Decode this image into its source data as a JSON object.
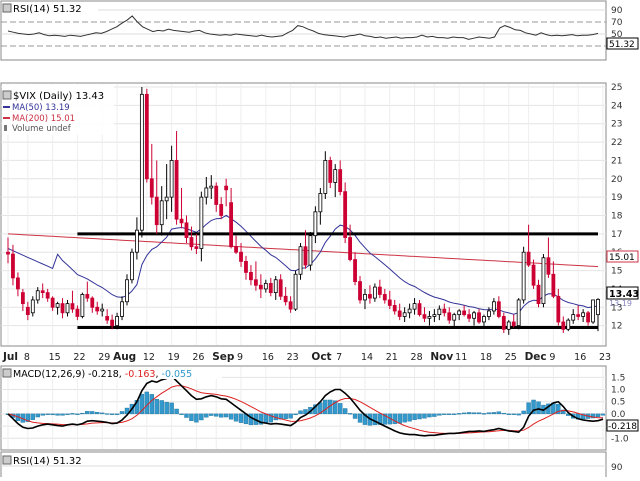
{
  "chart_data": [
    {
      "type": "line",
      "panel": "rsi-top",
      "title": "RSI(14) 51.32",
      "ylim": [
        10,
        100
      ],
      "yticks": [
        "90",
        "70",
        "50",
        "30"
      ],
      "reference_lines": [
        70,
        30
      ],
      "last_label": "51.32",
      "color": "#333333",
      "values": [
        55,
        53,
        51,
        50,
        49,
        50,
        52,
        49,
        47,
        48,
        47,
        46,
        48,
        47,
        46,
        48,
        50,
        52,
        51,
        54,
        58,
        62,
        68,
        73,
        80,
        70,
        62,
        58,
        54,
        56,
        55,
        58,
        56,
        55,
        54,
        53,
        55,
        56,
        52,
        50,
        49,
        48,
        49,
        48,
        50,
        49,
        48,
        47,
        46,
        48,
        46,
        45,
        46,
        47,
        52,
        56,
        64,
        62,
        58,
        55,
        51,
        49,
        48,
        47,
        46,
        45,
        47,
        48,
        50,
        47,
        46,
        44,
        45,
        43,
        44,
        45,
        43,
        44,
        44,
        45,
        48,
        45,
        46,
        44,
        44,
        43,
        45,
        44,
        44,
        41,
        43,
        45,
        44,
        43,
        45,
        60,
        64,
        61,
        57,
        56,
        52,
        50,
        48,
        52,
        49,
        47,
        48,
        47,
        48,
        49,
        47,
        48,
        48,
        49,
        51
      ]
    },
    {
      "type": "candlestick",
      "panel": "main",
      "title": "$VIX (Daily) 13.43",
      "ylim": [
        11,
        25
      ],
      "yticks": [
        "25",
        "24",
        "23",
        "22",
        "21",
        "20",
        "19",
        "18",
        "17",
        "16",
        "15",
        "14",
        "13",
        "12"
      ],
      "xticks": [
        "Jul",
        "8",
        "15",
        "22",
        "29",
        "Aug",
        "12",
        "19",
        "26",
        "Sep",
        "9",
        "16",
        "23",
        "Oct",
        "7",
        "14",
        "21",
        "28",
        "Nov",
        "11",
        "18",
        "25",
        "Dec",
        "9",
        "16",
        "23"
      ],
      "xtick_index": [
        0,
        4,
        9,
        14,
        19,
        22,
        28,
        33,
        38,
        42,
        47,
        52,
        57,
        62,
        67,
        72,
        77,
        82,
        86,
        91,
        96,
        101,
        105,
        110,
        115,
        120
      ],
      "month_labels": [
        "Jul",
        "Aug",
        "Sep",
        "Oct",
        "Nov",
        "Dec"
      ],
      "legend": [
        {
          "label": "$VIX (Daily) 13.43",
          "color": "#000000"
        },
        {
          "label": "MA(50) 13.19",
          "color": "#333399"
        },
        {
          "label": "MA(200) 15.01",
          "color": "#cc3344"
        },
        {
          "label": "Volume undef",
          "color": "#777777"
        }
      ],
      "last_labels": {
        "price": "13.43",
        "ma200": "15.01",
        "ma50": "13.19"
      },
      "support_lines": [
        17.0,
        11.9
      ],
      "colors": {
        "up": "#000000",
        "down": "#cc0033",
        "ma50": "#333399",
        "ma200": "#cc3344"
      },
      "ohlc": [
        [
          16.0,
          16.8,
          15.4,
          15.9
        ],
        [
          15.9,
          16.4,
          14.2,
          14.6
        ],
        [
          14.6,
          14.9,
          13.6,
          14.0
        ],
        [
          13.8,
          14.0,
          12.8,
          13.2
        ],
        [
          13.0,
          13.3,
          12.3,
          12.6
        ],
        [
          12.7,
          13.6,
          12.5,
          13.4
        ],
        [
          13.4,
          14.1,
          13.2,
          13.9
        ],
        [
          13.9,
          14.3,
          13.5,
          13.8
        ],
        [
          13.8,
          14.0,
          13.3,
          13.5
        ],
        [
          13.5,
          13.6,
          12.8,
          13.0
        ],
        [
          13.0,
          13.3,
          12.6,
          13.2
        ],
        [
          13.2,
          13.5,
          12.4,
          12.7
        ],
        [
          12.7,
          13.4,
          12.5,
          13.2
        ],
        [
          13.2,
          13.9,
          12.7,
          12.9
        ],
        [
          12.9,
          13.1,
          12.3,
          12.5
        ],
        [
          12.5,
          13.8,
          12.4,
          13.7
        ],
        [
          13.7,
          14.4,
          13.3,
          13.5
        ],
        [
          13.5,
          13.6,
          12.7,
          13.0
        ],
        [
          13.0,
          13.3,
          12.6,
          12.8
        ],
        [
          12.8,
          13.2,
          12.5,
          12.9
        ],
        [
          12.5,
          12.9,
          12.1,
          12.3
        ],
        [
          12.3,
          12.6,
          11.8,
          12.0
        ],
        [
          12.0,
          12.7,
          11.8,
          12.5
        ],
        [
          12.5,
          13.6,
          12.3,
          13.3
        ],
        [
          13.3,
          14.8,
          13.1,
          14.5
        ],
        [
          14.5,
          16.2,
          14.3,
          16.0
        ],
        [
          16.0,
          17.9,
          15.6,
          17.2
        ],
        [
          17.2,
          25.0,
          16.8,
          24.6
        ],
        [
          24.6,
          24.9,
          19.8,
          20.0
        ],
        [
          20.0,
          21.9,
          18.6,
          19.0
        ],
        [
          19.0,
          21.0,
          17.0,
          17.5
        ],
        [
          17.5,
          19.6,
          16.9,
          18.8
        ],
        [
          18.8,
          20.8,
          17.8,
          19.0
        ],
        [
          19.0,
          21.8,
          18.2,
          21.0
        ],
        [
          21.0,
          22.6,
          17.5,
          17.8
        ],
        [
          17.8,
          19.5,
          17.3,
          17.6
        ],
        [
          17.6,
          18.0,
          16.5,
          16.8
        ],
        [
          16.8,
          17.4,
          16.1,
          16.3
        ],
        [
          16.3,
          17.0,
          15.9,
          16.2
        ],
        [
          16.2,
          19.3,
          15.5,
          19.0
        ],
        [
          19.0,
          20.1,
          18.6,
          19.5
        ],
        [
          19.5,
          20.2,
          18.9,
          19.6
        ],
        [
          19.6,
          19.8,
          18.2,
          18.6
        ],
        [
          18.6,
          19.0,
          17.8,
          18.0
        ],
        [
          19.6,
          20.0,
          18.5,
          19.4
        ],
        [
          18.7,
          19.5,
          16.2,
          16.3
        ],
        [
          16.3,
          16.9,
          15.9,
          16.0
        ],
        [
          16.0,
          16.5,
          15.2,
          15.5
        ],
        [
          15.5,
          15.8,
          14.5,
          14.9
        ],
        [
          14.9,
          15.3,
          14.2,
          14.5
        ],
        [
          14.5,
          15.5,
          13.9,
          14.2
        ],
        [
          14.2,
          14.8,
          13.5,
          14.0
        ],
        [
          14.0,
          14.5,
          13.8,
          14.3
        ],
        [
          14.3,
          14.6,
          13.6,
          13.8
        ],
        [
          13.8,
          14.7,
          13.4,
          14.5
        ],
        [
          14.5,
          14.8,
          13.4,
          13.6
        ],
        [
          13.6,
          14.1,
          13.1,
          13.3
        ],
        [
          13.3,
          13.6,
          12.7,
          12.9
        ],
        [
          12.9,
          15.0,
          12.8,
          14.8
        ],
        [
          14.8,
          16.5,
          14.5,
          16.3
        ],
        [
          16.3,
          17.2,
          15.1,
          15.3
        ],
        [
          15.3,
          17.1,
          15.0,
          16.9
        ],
        [
          16.9,
          18.5,
          16.5,
          18.2
        ],
        [
          18.2,
          19.5,
          17.5,
          19.2
        ],
        [
          19.2,
          21.5,
          18.9,
          21.0
        ],
        [
          21.0,
          21.2,
          19.5,
          19.8
        ],
        [
          19.8,
          20.8,
          19.0,
          20.5
        ],
        [
          20.5,
          21.0,
          19.1,
          19.3
        ],
        [
          19.3,
          19.8,
          16.5,
          16.8
        ],
        [
          16.8,
          17.5,
          15.5,
          15.6
        ],
        [
          15.6,
          16.0,
          14.2,
          14.4
        ],
        [
          14.4,
          14.7,
          13.2,
          13.4
        ],
        [
          13.4,
          14.0,
          12.9,
          13.7
        ],
        [
          13.7,
          14.2,
          13.2,
          13.5
        ],
        [
          13.5,
          14.3,
          13.3,
          14.1
        ],
        [
          14.1,
          14.5,
          13.5,
          13.7
        ],
        [
          13.7,
          14.0,
          13.2,
          13.4
        ],
        [
          13.4,
          13.9,
          12.9,
          13.1
        ],
        [
          13.1,
          13.4,
          12.6,
          12.8
        ],
        [
          12.8,
          13.2,
          12.3,
          12.5
        ],
        [
          12.5,
          13.0,
          12.2,
          12.7
        ],
        [
          12.7,
          13.2,
          12.4,
          12.9
        ],
        [
          12.9,
          13.5,
          12.6,
          13.2
        ],
        [
          13.2,
          13.4,
          12.5,
          12.6
        ],
        [
          12.6,
          13.0,
          12.2,
          12.4
        ],
        [
          12.4,
          12.8,
          12.0,
          12.5
        ],
        [
          12.5,
          12.9,
          12.2,
          12.6
        ],
        [
          12.6,
          13.1,
          12.3,
          12.9
        ],
        [
          12.9,
          13.2,
          12.5,
          12.7
        ],
        [
          12.7,
          13.0,
          12.1,
          12.3
        ],
        [
          12.3,
          12.7,
          11.9,
          12.6
        ],
        [
          12.6,
          12.9,
          12.3,
          12.8
        ],
        [
          12.8,
          13.1,
          12.5,
          12.6
        ],
        [
          12.6,
          12.9,
          12.2,
          12.4
        ],
        [
          12.4,
          12.8,
          12.0,
          12.7
        ],
        [
          12.7,
          12.9,
          12.1,
          12.2
        ],
        [
          12.2,
          12.6,
          11.9,
          12.5
        ],
        [
          12.5,
          13.0,
          12.3,
          12.8
        ],
        [
          12.8,
          13.5,
          12.6,
          13.3
        ],
        [
          13.3,
          13.6,
          12.4,
          12.5
        ],
        [
          12.5,
          12.7,
          11.6,
          11.8
        ],
        [
          11.8,
          12.3,
          11.5,
          12.2
        ],
        [
          12.2,
          12.6,
          11.9,
          12.0
        ],
        [
          12.0,
          13.5,
          11.8,
          13.4
        ],
        [
          13.4,
          16.3,
          13.2,
          16.0
        ],
        [
          16.0,
          17.5,
          15.2,
          15.3
        ],
        [
          15.3,
          15.6,
          14.0,
          14.2
        ],
        [
          14.2,
          14.5,
          13.0,
          13.2
        ],
        [
          13.2,
          15.9,
          13.0,
          15.7
        ],
        [
          15.7,
          16.8,
          14.6,
          14.8
        ],
        [
          14.8,
          15.5,
          13.5,
          13.6
        ],
        [
          13.6,
          14.0,
          12.0,
          12.2
        ],
        [
          12.2,
          12.5,
          11.6,
          11.8
        ],
        [
          11.8,
          12.4,
          11.7,
          12.3
        ],
        [
          12.3,
          12.9,
          12.1,
          12.6
        ],
        [
          12.6,
          13.1,
          12.3,
          12.5
        ],
        [
          12.5,
          12.9,
          12.2,
          12.7
        ],
        [
          12.7,
          12.8,
          12.0,
          12.2
        ],
        [
          12.2,
          13.4,
          12.1,
          13.4
        ],
        [
          12.6,
          13.5,
          11.7,
          13.43
        ]
      ]
    },
    {
      "type": "line",
      "panel": "macd",
      "title": "MACD(12,26,9) -0.218, -0.163, -0.055",
      "title_parts": [
        "MACD(12,26,9) ",
        "-0.218",
        ", ",
        "-0.163",
        ", ",
        "-0.055"
      ],
      "ylim": [
        -1.4,
        1.8
      ],
      "yticks": [
        "1.5",
        "1.0",
        "0.5",
        "0.0",
        "-0.5",
        "-1.0"
      ],
      "ytick_values": [
        1.5,
        1.0,
        0.5,
        0.0,
        -0.5,
        -1.0
      ],
      "last_label": "-0.218",
      "colors": {
        "macd": "#000000",
        "signal": "#dd2222",
        "histogram": "#3399cc"
      },
      "series": [
        {
          "name": "MACD",
          "values": [
            0.0,
            -0.2,
            -0.4,
            -0.55,
            -0.6,
            -0.58,
            -0.5,
            -0.45,
            -0.42,
            -0.45,
            -0.48,
            -0.5,
            -0.45,
            -0.42,
            -0.45,
            -0.4,
            -0.3,
            -0.28,
            -0.3,
            -0.32,
            -0.35,
            -0.4,
            -0.38,
            -0.25,
            -0.05,
            0.2,
            0.5,
            0.95,
            1.25,
            1.35,
            1.3,
            1.4,
            1.45,
            1.55,
            1.35,
            1.15,
            0.95,
            0.75,
            0.6,
            0.62,
            0.7,
            0.75,
            0.7,
            0.62,
            0.6,
            0.45,
            0.3,
            0.15,
            0.0,
            -0.15,
            -0.25,
            -0.35,
            -0.38,
            -0.42,
            -0.4,
            -0.42,
            -0.45,
            -0.48,
            -0.35,
            -0.15,
            -0.05,
            0.1,
            0.3,
            0.5,
            0.75,
            0.9,
            1.0,
            1.0,
            0.85,
            0.65,
            0.4,
            0.15,
            -0.05,
            -0.2,
            -0.3,
            -0.4,
            -0.5,
            -0.6,
            -0.7,
            -0.78,
            -0.82,
            -0.85,
            -0.85,
            -0.88,
            -0.9,
            -0.88,
            -0.88,
            -0.85,
            -0.82,
            -0.8,
            -0.8,
            -0.78,
            -0.75,
            -0.72,
            -0.72,
            -0.7,
            -0.72,
            -0.68,
            -0.65,
            -0.6,
            -0.65,
            -0.7,
            -0.72,
            -0.75,
            -0.55,
            -0.1,
            0.15,
            0.2,
            0.15,
            0.3,
            0.45,
            0.5,
            0.3,
            0.05,
            -0.1,
            -0.2,
            -0.25,
            -0.28,
            -0.3,
            -0.28,
            -0.22
          ]
        },
        {
          "name": "Signal",
          "values": [
            0.0,
            -0.05,
            -0.12,
            -0.2,
            -0.28,
            -0.34,
            -0.37,
            -0.39,
            -0.4,
            -0.41,
            -0.42,
            -0.44,
            -0.44,
            -0.44,
            -0.44,
            -0.43,
            -0.41,
            -0.38,
            -0.37,
            -0.36,
            -0.36,
            -0.37,
            -0.37,
            -0.35,
            -0.29,
            -0.2,
            -0.06,
            0.14,
            0.35,
            0.55,
            0.7,
            0.85,
            0.97,
            1.1,
            1.15,
            1.15,
            1.1,
            1.03,
            0.94,
            0.87,
            0.84,
            0.82,
            0.8,
            0.76,
            0.73,
            0.67,
            0.6,
            0.51,
            0.41,
            0.3,
            0.19,
            0.08,
            0.0,
            -0.08,
            -0.15,
            -0.2,
            -0.25,
            -0.3,
            -0.31,
            -0.28,
            -0.23,
            -0.17,
            -0.08,
            0.04,
            0.18,
            0.33,
            0.46,
            0.57,
            0.63,
            0.63,
            0.59,
            0.5,
            0.39,
            0.27,
            0.15,
            0.04,
            -0.07,
            -0.18,
            -0.29,
            -0.39,
            -0.48,
            -0.55,
            -0.61,
            -0.67,
            -0.72,
            -0.75,
            -0.77,
            -0.79,
            -0.8,
            -0.8,
            -0.8,
            -0.8,
            -0.79,
            -0.78,
            -0.77,
            -0.75,
            -0.74,
            -0.73,
            -0.71,
            -0.69,
            -0.68,
            -0.68,
            -0.69,
            -0.7,
            -0.67,
            -0.56,
            -0.42,
            -0.3,
            -0.21,
            -0.11,
            0.0,
            0.1,
            0.14,
            0.12,
            0.08,
            0.02,
            -0.04,
            -0.09,
            -0.13,
            -0.16,
            -0.163
          ]
        }
      ]
    },
    {
      "type": "line",
      "panel": "rsi-bottom",
      "title": "RSI(14) 51.32",
      "ylim": [
        80,
        100
      ],
      "yticks": [
        "90"
      ]
    }
  ]
}
